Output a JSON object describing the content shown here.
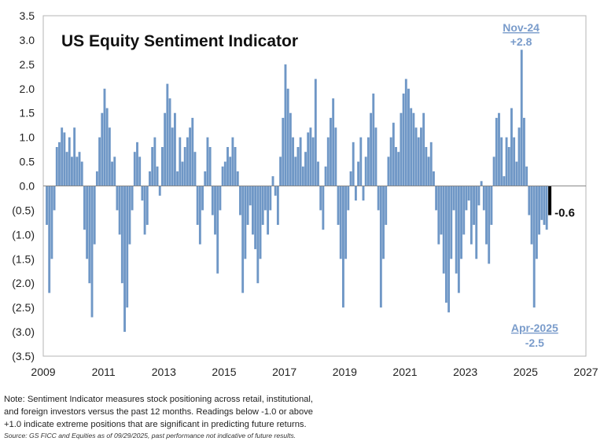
{
  "chart_data": {
    "type": "bar",
    "title": "US Equity Sentiment Indicator",
    "xlabel": "",
    "ylabel": "",
    "xlim": [
      2009,
      2027
    ],
    "ylim": [
      -3.5,
      3.5
    ],
    "x_ticks": [
      "2009",
      "2011",
      "2013",
      "2015",
      "2017",
      "2019",
      "2021",
      "2023",
      "2025",
      "2027"
    ],
    "y_ticks": [
      "3.5",
      "3.0",
      "2.5",
      "2.0",
      "1.5",
      "1.0",
      "0.5",
      "0.0",
      "(0.5)",
      "(1.0)",
      "(1.5)",
      "(2.0)",
      "(2.5)",
      "(3.0)",
      "(3.5)"
    ],
    "grid": false,
    "bar_color": "#6f97c6",
    "latest_color": "#000000",
    "start": 2009.08,
    "step_years": 0.08333,
    "values": [
      -0.8,
      -2.2,
      -1.5,
      -0.5,
      0.8,
      0.9,
      1.2,
      1.1,
      0.7,
      1.0,
      0.6,
      1.2,
      0.6,
      0.7,
      0.5,
      -0.9,
      -1.5,
      -2.0,
      -2.7,
      -1.2,
      0.3,
      1.0,
      1.5,
      2.0,
      1.6,
      1.2,
      0.5,
      0.6,
      -0.5,
      -1.0,
      -2.0,
      -3.0,
      -2.5,
      -1.2,
      -0.5,
      0.7,
      0.9,
      0.6,
      -0.3,
      -1.0,
      -0.8,
      0.3,
      0.8,
      1.0,
      0.4,
      -0.2,
      0.8,
      1.5,
      2.1,
      1.8,
      1.2,
      1.5,
      0.3,
      1.0,
      0.5,
      0.8,
      1.0,
      1.2,
      1.4,
      0.7,
      -0.8,
      -1.2,
      -0.5,
      0.3,
      1.0,
      0.8,
      -0.6,
      -1.0,
      -1.8,
      -0.5,
      0.4,
      0.5,
      0.8,
      0.6,
      1.0,
      0.8,
      0.3,
      -0.6,
      -2.2,
      -1.5,
      -0.8,
      -0.4,
      -1.0,
      -1.3,
      -2.0,
      -1.5,
      -0.8,
      -0.5,
      -1.0,
      -0.5,
      0.2,
      -0.2,
      -0.8,
      0.6,
      1.4,
      2.5,
      2.0,
      1.5,
      1.0,
      0.6,
      0.8,
      1.0,
      0.4,
      0.7,
      1.1,
      1.2,
      1.0,
      2.2,
      0.5,
      -0.5,
      -0.9,
      0.4,
      1.0,
      1.4,
      1.8,
      1.2,
      -0.8,
      -1.5,
      -2.5,
      -1.5,
      -0.5,
      0.3,
      0.9,
      -0.3,
      0.5,
      1.0,
      -0.3,
      0.6,
      1.0,
      1.5,
      1.9,
      1.2,
      -0.5,
      -2.5,
      -1.5,
      -0.8,
      0.6,
      1.0,
      1.3,
      0.8,
      0.7,
      1.5,
      1.9,
      2.2,
      2.0,
      1.6,
      1.5,
      1.2,
      1.0,
      1.2,
      1.5,
      0.8,
      0.6,
      0.9,
      0.3,
      -0.5,
      -1.2,
      -1.0,
      -1.8,
      -2.4,
      -2.6,
      -1.5,
      -0.5,
      -1.8,
      -2.2,
      -1.5,
      -1.0,
      -0.5,
      -0.3,
      -1.2,
      -0.8,
      -1.5,
      -0.4,
      0.1,
      -0.5,
      -1.2,
      -1.6,
      -0.8,
      0.6,
      1.4,
      1.5,
      1.0,
      0.2,
      1.0,
      0.8,
      1.6,
      1.0,
      0.5,
      1.2,
      2.8,
      1.4,
      0.4,
      -0.6,
      -1.2,
      -2.5,
      -1.5,
      -1.0,
      -0.7,
      -0.8,
      -0.9
    ],
    "latest": {
      "x": 2025.75,
      "value": -0.6,
      "label": "-0.6"
    },
    "annotations": [
      {
        "date": "Nov-24",
        "value_label": "+2.8",
        "x": 2024.85,
        "y": 2.8
      },
      {
        "date": "Apr-2025",
        "value_label": "-2.5",
        "x": 2025.3,
        "y": -2.5
      }
    ]
  },
  "note": [
    "Note: Sentiment Indicator measures stock positioning across retail, institutional,",
    "and foreign investors versus the past 12 months. Readings below -1.0 or above",
    "+1.0 indicate extreme positions that are significant in predicting future returns."
  ],
  "source": "Source: GS FICC and Equities as of 09/29/2025, past performance not indicative of future results."
}
